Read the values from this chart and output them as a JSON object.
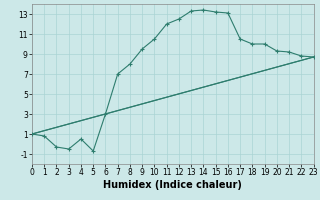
{
  "xlabel": "Humidex (Indice chaleur)",
  "background_color": "#cce8e8",
  "line_color": "#2e7d6e",
  "line1_x": [
    0,
    1,
    2,
    3,
    4,
    5,
    6,
    7,
    8,
    9,
    10,
    11,
    12,
    13,
    14,
    15,
    16,
    17,
    18,
    19,
    20,
    21,
    22,
    23
  ],
  "line1_y": [
    1,
    0.8,
    -0.3,
    -0.5,
    0.5,
    -0.7,
    3.0,
    7.0,
    8.0,
    9.5,
    10.5,
    12.0,
    12.5,
    13.3,
    13.4,
    13.2,
    13.1,
    10.5,
    10.0,
    10.0,
    9.3,
    9.2,
    8.8,
    8.7
  ],
  "line2_x": [
    0,
    23
  ],
  "line2_y": [
    1,
    8.7
  ],
  "line3_x": [
    0,
    6,
    23
  ],
  "line3_y": [
    1,
    3.0,
    8.7
  ],
  "xlim": [
    0,
    23
  ],
  "ylim": [
    -2,
    14
  ],
  "yticks": [
    -1,
    1,
    3,
    5,
    7,
    9,
    11,
    13
  ],
  "xticks": [
    0,
    1,
    2,
    3,
    4,
    5,
    6,
    7,
    8,
    9,
    10,
    11,
    12,
    13,
    14,
    15,
    16,
    17,
    18,
    19,
    20,
    21,
    22,
    23
  ],
  "grid_color": "#aad4d4",
  "xlabel_fontsize": 7,
  "tick_fontsize": 5.5
}
